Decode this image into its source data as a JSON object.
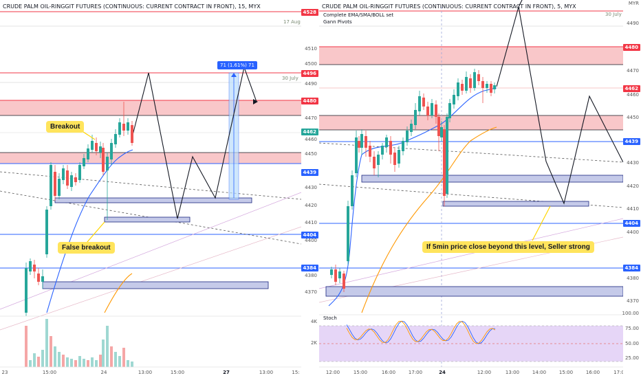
{
  "left_chart": {
    "title": "CRUDE PALM OIL-RINGGIT FUTURES (CONTINUOUS: CURRENT CONTRACT IN FRONT), 15, MYX",
    "date_17aug": "17 Aug",
    "date_30july": "30 July",
    "measure_label": "71 (1.61%) 71",
    "note_breakout": "Breakout",
    "note_false_breakout": "False breakout",
    "stoch_levels": [
      "4K",
      "2K"
    ],
    "time_labels": [
      "23",
      "15:00",
      "24",
      "13:00",
      "15:00",
      "27",
      "13:00",
      "15:"
    ],
    "time_bold": [
      false,
      false,
      true,
      false,
      false,
      true,
      false,
      false
    ]
  },
  "right_chart": {
    "title": "CRUDE PALM OIL-RINGGIT FUTURES (CONTINUOUS: CURRENT CONTRACT IN FRONT), 5, MYX",
    "indicator_1": "Complete EMA/SMA/BOLL set",
    "indicator_2": "Gann Pivots",
    "date_30july": "30 July",
    "note_seller": "If 5min price close beyond this level, Seller strong",
    "stoch_title": "Stoch",
    "time_labels": [
      "12:00",
      "15:00",
      "16:00",
      "17:00",
      "24",
      "12:00",
      "13:00",
      "14:00",
      "15:00",
      "16:00",
      "17:0"
    ],
    "time_bold": [
      false,
      false,
      false,
      false,
      true,
      false,
      false,
      false,
      false,
      false,
      false
    ]
  },
  "axis_left": {
    "ticks": [
      "4510",
      "4500",
      "4490",
      "4470",
      "4460",
      "4450",
      "4430",
      "4420",
      "4410",
      "4400",
      "4380",
      "4370"
    ],
    "badges": [
      {
        "text": "4528",
        "color": "#f23645"
      },
      {
        "text": "4496",
        "color": "#f23645"
      },
      {
        "text": "4480",
        "color": "#f23645"
      },
      {
        "text": "4462",
        "color": "#26a69a"
      },
      {
        "text": "4439",
        "color": "#2962ff"
      },
      {
        "text": "4404",
        "color": "#2962ff"
      },
      {
        "text": "4384",
        "color": "#2962ff"
      }
    ]
  },
  "axis_right": {
    "currency": "MYR",
    "ticks": [
      "4490",
      "4470",
      "4460",
      "4450",
      "4430",
      "4420",
      "4410",
      "4400",
      "4380",
      "4370"
    ],
    "badges": [
      {
        "text": "4480",
        "color": "#f23645"
      },
      {
        "text": "4462",
        "color": "#f23645"
      },
      {
        "text": "4439",
        "color": "#2962ff"
      },
      {
        "text": "4404",
        "color": "#2962ff"
      },
      {
        "text": "4384",
        "color": "#2962ff"
      }
    ],
    "stoch_ticks": [
      "100.00",
      "75.00",
      "50.00",
      "25.00"
    ]
  },
  "colors": {
    "bull": "#26a69a",
    "bear": "#ef5350",
    "ema_blue": "#2962ff",
    "sma_orange": "#ff9800",
    "zone_red": "#f7b4b7",
    "zone_blue": "#c5cae9",
    "stoch_bg": "#e6d6f7",
    "note_yellow": "#ffe45c"
  }
}
